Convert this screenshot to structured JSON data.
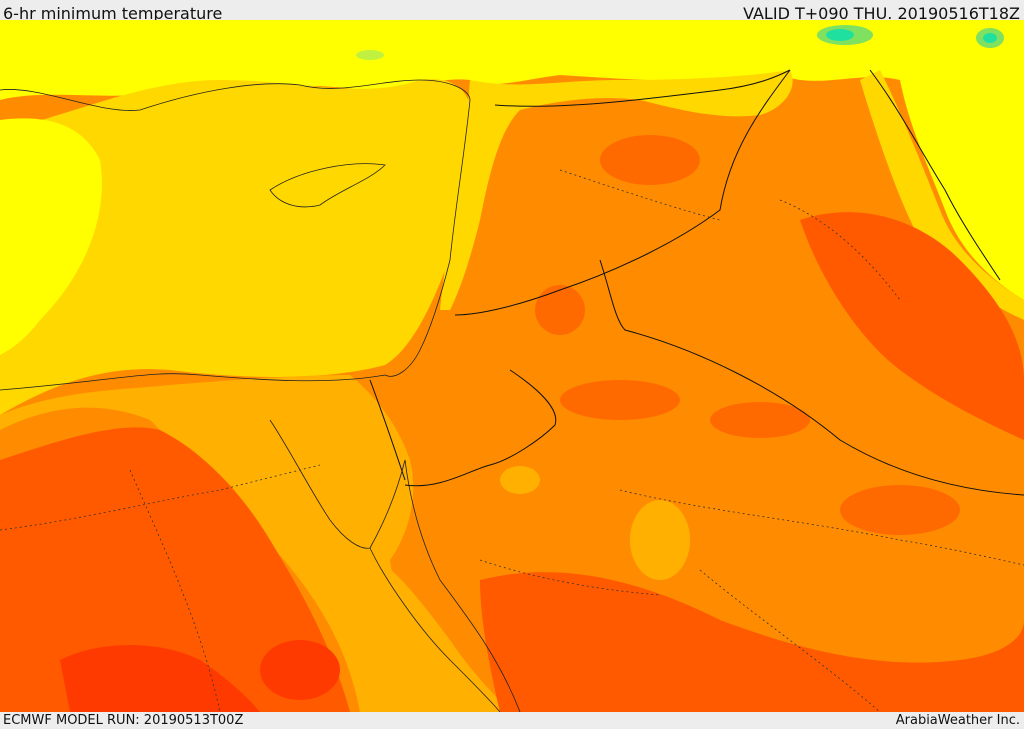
{
  "header": {
    "title": "6-hr minimum temperature",
    "valid": "VALID T+090 THU. 20190516T18Z"
  },
  "footer": {
    "model_run": "ECMWF MODEL RUN: 20190513T00Z",
    "credit": "ArabiaWeather Inc."
  },
  "colors": {
    "yellow": "#ffff00",
    "gold": "#ffd800",
    "light_orange": "#ffb000",
    "orange": "#ff8c00",
    "dark_orange": "#ff5a00",
    "red_orange": "#ff3a00",
    "green": "#80e060",
    "teal": "#20e0a0"
  }
}
